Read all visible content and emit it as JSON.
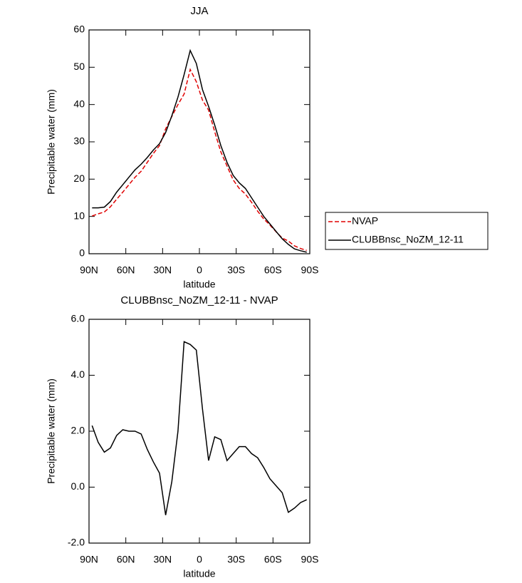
{
  "chart_data": [
    {
      "type": "line",
      "title": "JJA",
      "xlabel": "latitude",
      "ylabel": "Precipitable water (mm)",
      "xlim": [
        90,
        -90
      ],
      "xticks": [
        {
          "value": 90,
          "label": "90N"
        },
        {
          "value": 60,
          "label": "60N"
        },
        {
          "value": 30,
          "label": "30N"
        },
        0,
        {
          "value": -30,
          "label": "30S"
        },
        {
          "value": -60,
          "label": "60S"
        },
        {
          "value": -90,
          "label": "90S"
        }
      ],
      "ylim": [
        0,
        60
      ],
      "yticks": [
        0,
        10,
        20,
        30,
        40,
        50,
        60
      ],
      "legend": "right",
      "x": [
        87.5,
        82.5,
        77.5,
        72.5,
        67.5,
        62.5,
        57.5,
        52.5,
        47.5,
        42.5,
        37.5,
        32.5,
        27.5,
        22.5,
        17.5,
        12.5,
        7.5,
        2.5,
        -2.5,
        -7.5,
        -12.5,
        -17.5,
        -22.5,
        -27.5,
        -32.5,
        -37.5,
        -42.5,
        -47.5,
        -52.5,
        -57.5,
        -62.5,
        -67.5,
        -72.5,
        -77.5,
        -82.5,
        -87.5
      ],
      "series": [
        {
          "name": "NVAP",
          "color": "#e00000",
          "dashed": true,
          "values": [
            10.1,
            10.7,
            11.2,
            12.6,
            14.6,
            16.5,
            18.5,
            20.5,
            22.1,
            24.5,
            26.9,
            29,
            33.5,
            36.8,
            40,
            42.8,
            49.4,
            46.1,
            41.2,
            38.5,
            32.7,
            27.3,
            23.5,
            19.8,
            17.5,
            16,
            13.8,
            11.4,
            9.3,
            7.7,
            5.9,
            4.2,
            3.4,
            2.1,
            1.4,
            0.9
          ]
        },
        {
          "name": "CLUBBnsc_NoZM_12-11",
          "color": "#000000",
          "dashed": false,
          "values": [
            12.3,
            12.3,
            12.5,
            14,
            16.5,
            18.5,
            20.5,
            22.5,
            24,
            25.8,
            27.8,
            29.5,
            32.5,
            37,
            42,
            48,
            54.5,
            51,
            44,
            39.5,
            34.5,
            29,
            24.5,
            21,
            19,
            17.5,
            15,
            12.5,
            10,
            8,
            6,
            4,
            2.5,
            1.3,
            0.8,
            0.4
          ]
        }
      ]
    },
    {
      "type": "line",
      "title": "CLUBBnsc_NoZM_12-11 - NVAP",
      "xlabel": "latitude",
      "ylabel": "Precipitable water (mm)",
      "xlim": [
        90,
        -90
      ],
      "xticks": [
        {
          "value": 90,
          "label": "90N"
        },
        {
          "value": 60,
          "label": "60N"
        },
        {
          "value": 30,
          "label": "30N"
        },
        0,
        {
          "value": -30,
          "label": "30S"
        },
        {
          "value": -60,
          "label": "60S"
        },
        {
          "value": -90,
          "label": "90S"
        }
      ],
      "ylim": [
        -2,
        6
      ],
      "yticks": [
        {
          "value": -2,
          "label": "-2.0"
        },
        {
          "value": 0,
          "label": "0.0"
        },
        {
          "value": 2,
          "label": "2.0"
        },
        {
          "value": 4,
          "label": "4.0"
        },
        {
          "value": 6,
          "label": "6.0"
        }
      ],
      "x": [
        87.5,
        82.5,
        77.5,
        72.5,
        67.5,
        62.5,
        57.5,
        52.5,
        47.5,
        42.5,
        37.5,
        32.5,
        27.5,
        22.5,
        17.5,
        12.5,
        7.5,
        2.5,
        -2.5,
        -7.5,
        -12.5,
        -17.5,
        -22.5,
        -27.5,
        -32.5,
        -37.5,
        -42.5,
        -47.5,
        -52.5,
        -57.5,
        -62.5,
        -67.5,
        -72.5,
        -77.5,
        -82.5,
        -87.5
      ],
      "series": [
        {
          "color": "#000000",
          "dashed": false,
          "values": [
            2.2,
            1.6,
            1.25,
            1.4,
            1.85,
            2.05,
            2.0,
            2.0,
            1.9,
            1.35,
            0.9,
            0.5,
            -1.0,
            0.2,
            2.0,
            5.2,
            5.1,
            4.9,
            2.8,
            0.95,
            1.8,
            1.7,
            0.95,
            1.2,
            1.45,
            1.45,
            1.2,
            1.05,
            0.7,
            0.3,
            0.05,
            -0.2,
            -0.9,
            -0.75,
            -0.55,
            -0.45
          ]
        }
      ]
    }
  ]
}
